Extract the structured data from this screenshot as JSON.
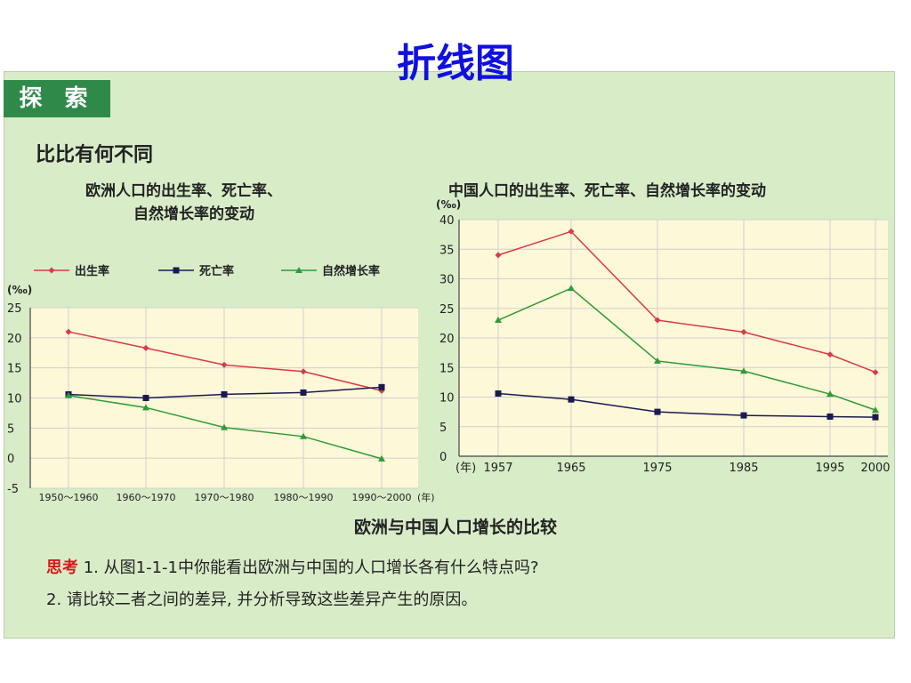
{
  "page": {
    "title": "折线图",
    "tag": "探 索",
    "subtitle": "比比有何不同",
    "caption": "欧洲与中国人口增长的比较",
    "questions": {
      "lead": "思考",
      "q1": "1. 从图1-1-1中你能看出欧洲与中国的人口增长各有什么特点吗?",
      "q2": "2. 请比较二者之间的差异, 并分析导致这些差异产生的原因。"
    }
  },
  "colors": {
    "birth": "#d83a4a",
    "death": "#1a1a50",
    "natural": "#2f9a3a",
    "plot_bg": "#fdf8d8",
    "grid": "#cfcfcf"
  },
  "chart_data": [
    {
      "type": "line",
      "title_lines": [
        "欧洲人口的出生率、死亡率、",
        "自然增长率的变动"
      ],
      "ylabel": "(‰)",
      "xlabel": "(年)",
      "ylim": [
        -5,
        25
      ],
      "yticks": [
        -5,
        0,
        5,
        10,
        15,
        20,
        25
      ],
      "categories": [
        "1950～1960",
        "1960～1970",
        "1970～1980",
        "1980～1990",
        "1990～2000"
      ],
      "legend_position": "top",
      "grid": true,
      "series": [
        {
          "name": "出生率",
          "key": "birth",
          "marker": "diamond",
          "values": [
            21,
            18.3,
            15.5,
            14.4,
            11.2
          ]
        },
        {
          "name": "死亡率",
          "key": "death",
          "marker": "square",
          "values": [
            10.6,
            10.0,
            10.6,
            10.9,
            11.8
          ]
        },
        {
          "name": "自然增长率",
          "key": "natural",
          "marker": "triangle",
          "values": [
            10.4,
            8.4,
            5.1,
            3.6,
            -0.1
          ]
        }
      ]
    },
    {
      "type": "line",
      "title": "中国人口的出生率、死亡率、自然增长率的变动",
      "ylabel": "(‰)",
      "xlabel": "(年)",
      "ylim": [
        0,
        40
      ],
      "yticks": [
        0,
        5,
        10,
        15,
        20,
        25,
        30,
        35,
        40
      ],
      "x": [
        1957,
        1965,
        1975,
        1985,
        1995,
        2000
      ],
      "grid": true,
      "series": [
        {
          "key": "birth",
          "marker": "diamond",
          "values": [
            34,
            38,
            23,
            21,
            17.2,
            14.2
          ]
        },
        {
          "key": "death",
          "marker": "square",
          "values": [
            10.6,
            9.6,
            7.5,
            6.9,
            6.7,
            6.6
          ]
        },
        {
          "key": "natural",
          "marker": "triangle",
          "values": [
            23,
            28.4,
            16.1,
            14.4,
            10.5,
            7.8
          ]
        }
      ]
    }
  ]
}
